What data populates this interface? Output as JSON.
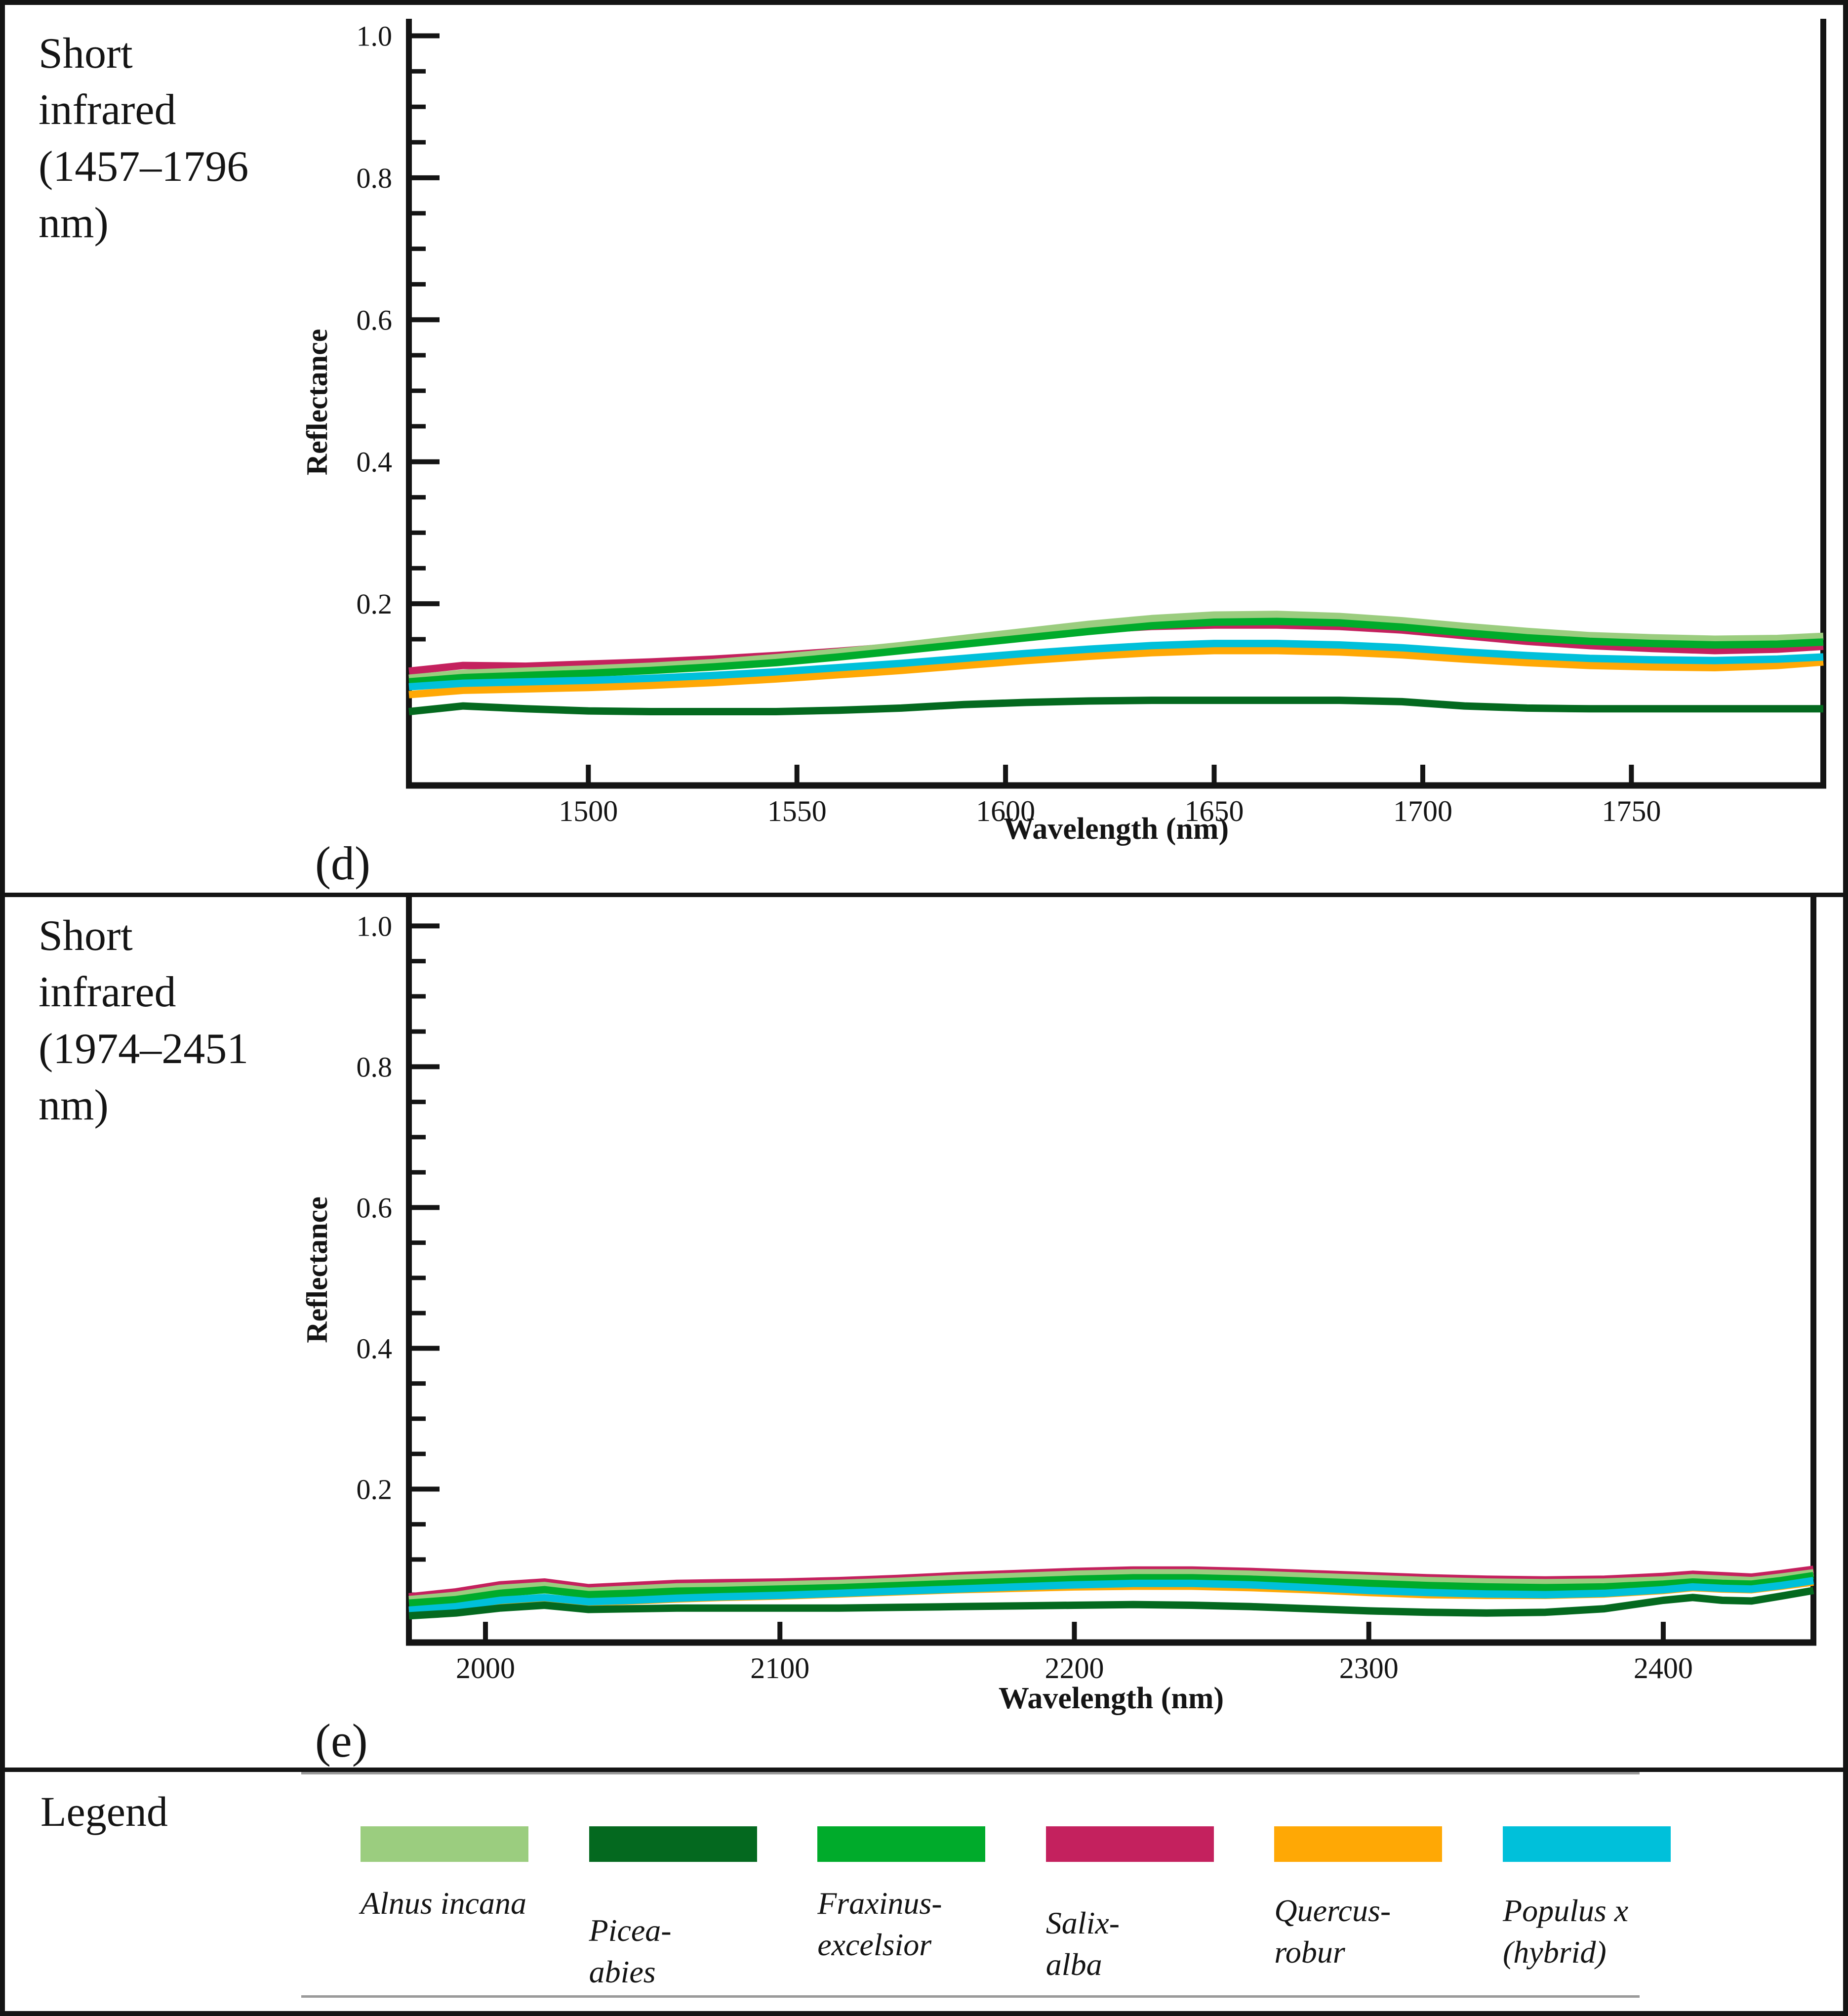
{
  "panels": [
    {
      "header": "Short\ninfrared\n(1457–1796\nnm)",
      "letter": "(d)"
    },
    {
      "header": "Short\ninfrared\n(1974–2451\nnm)",
      "letter": "(e)"
    }
  ],
  "legend": {
    "title": "Legend",
    "items": [
      {
        "name": "Alnus incana",
        "label": "Alnus incana",
        "color": "#9bcd7f"
      },
      {
        "name": "Picea abies",
        "label": "Picea-\nabies",
        "color": "#04691f"
      },
      {
        "name": "Fraxinus excelsior",
        "label": "Fraxinus-\nexcelsior",
        "color": "#00ab2b"
      },
      {
        "name": "Salix alba",
        "label": "Salix-\nalba",
        "color": "#c4215e"
      },
      {
        "name": "Quercus robur",
        "label": "Quercus-\nrobur",
        "color": "#ffa805"
      },
      {
        "name": "Populus x (hybrid)",
        "label": "Populus x\n(hybrid)",
        "color": "#00c0da"
      }
    ]
  },
  "colors": {
    "axis": "#141414",
    "background": "#ffffff",
    "alnus": "#9bcd7f",
    "picea": "#04691f",
    "fraxinus": "#00ab2b",
    "salix": "#c4215e",
    "quercus": "#ffa805",
    "populus": "#00c0da"
  },
  "chart_data": [
    {
      "type": "line",
      "title": "Short infrared (1457–1796 nm)",
      "xlabel": "Wavelength (nm)",
      "ylabel": "Reflectance",
      "xlim": [
        1457,
        1796
      ],
      "ylim": [
        -0.056,
        1.024
      ],
      "x_ticks": [
        1500,
        1550,
        1600,
        1650,
        1700,
        1750
      ],
      "y_ticks_major": [
        "1.0",
        "0.8",
        "0.6",
        "0.4",
        "0.2"
      ],
      "y_minor_step": 0.05,
      "grid": false,
      "legend_position": "separate bottom panel",
      "x": [
        1457,
        1470,
        1485,
        1500,
        1515,
        1530,
        1545,
        1560,
        1575,
        1590,
        1605,
        1620,
        1635,
        1650,
        1665,
        1680,
        1695,
        1710,
        1725,
        1740,
        1755,
        1770,
        1785,
        1796
      ],
      "series": [
        {
          "name": "Salix alba",
          "color": "#c4215e",
          "values": [
            0.105,
            0.113,
            0.112,
            0.115,
            0.118,
            0.122,
            0.127,
            0.133,
            0.14,
            0.148,
            0.156,
            0.163,
            0.168,
            0.17,
            0.17,
            0.168,
            0.163,
            0.155,
            0.147,
            0.141,
            0.137,
            0.134,
            0.136,
            0.14
          ]
        },
        {
          "name": "Alnus incana",
          "color": "#9bcd7f",
          "values": [
            0.095,
            0.102,
            0.105,
            0.108,
            0.112,
            0.117,
            0.124,
            0.132,
            0.141,
            0.151,
            0.161,
            0.171,
            0.179,
            0.184,
            0.185,
            0.182,
            0.176,
            0.168,
            0.161,
            0.155,
            0.152,
            0.15,
            0.151,
            0.154
          ]
        },
        {
          "name": "Fraxinus excelsior",
          "color": "#00ab2b",
          "values": [
            0.09,
            0.096,
            0.099,
            0.102,
            0.106,
            0.111,
            0.117,
            0.125,
            0.134,
            0.143,
            0.152,
            0.161,
            0.169,
            0.174,
            0.175,
            0.173,
            0.167,
            0.159,
            0.152,
            0.147,
            0.144,
            0.142,
            0.143,
            0.146
          ]
        },
        {
          "name": "Quercus robur",
          "color": "#ffa805",
          "values": [
            0.072,
            0.078,
            0.08,
            0.082,
            0.085,
            0.089,
            0.094,
            0.1,
            0.106,
            0.113,
            0.12,
            0.126,
            0.131,
            0.134,
            0.134,
            0.132,
            0.128,
            0.122,
            0.117,
            0.113,
            0.111,
            0.11,
            0.113,
            0.118
          ]
        },
        {
          "name": "Populus x (hybrid)",
          "color": "#00c0da",
          "values": [
            0.083,
            0.088,
            0.09,
            0.092,
            0.095,
            0.099,
            0.104,
            0.11,
            0.116,
            0.123,
            0.13,
            0.136,
            0.141,
            0.144,
            0.144,
            0.142,
            0.138,
            0.132,
            0.127,
            0.123,
            0.121,
            0.12,
            0.122,
            0.125
          ]
        },
        {
          "name": "Picea abies",
          "color": "#04691f",
          "values": [
            0.048,
            0.056,
            0.052,
            0.049,
            0.048,
            0.048,
            0.048,
            0.05,
            0.053,
            0.058,
            0.061,
            0.063,
            0.064,
            0.064,
            0.064,
            0.064,
            0.062,
            0.056,
            0.053,
            0.052,
            0.052,
            0.052,
            0.052,
            0.052
          ]
        }
      ]
    },
    {
      "type": "line",
      "title": "Short infrared (1974–2451 nm)",
      "xlabel": "Wavelength (nm)",
      "ylabel": "Reflectance",
      "xlim": [
        1974,
        2451
      ],
      "ylim": [
        -0.018,
        1.041
      ],
      "x_ticks": [
        2000,
        2100,
        2200,
        2300,
        2400
      ],
      "y_ticks_major": [
        "1.0",
        "0.8",
        "0.6",
        "0.4",
        "0.2"
      ],
      "y_minor_step": 0.05,
      "grid": false,
      "legend_position": "separate bottom panel",
      "x": [
        1974,
        1990,
        2005,
        2020,
        2035,
        2050,
        2065,
        2080,
        2100,
        2120,
        2140,
        2160,
        2180,
        2200,
        2220,
        2240,
        2260,
        2280,
        2300,
        2320,
        2340,
        2360,
        2380,
        2400,
        2410,
        2420,
        2430,
        2440,
        2451
      ],
      "series": [
        {
          "name": "Salix alba",
          "color": "#c4215e",
          "values": [
            0.047,
            0.054,
            0.064,
            0.068,
            0.06,
            0.063,
            0.066,
            0.067,
            0.068,
            0.07,
            0.073,
            0.077,
            0.08,
            0.083,
            0.085,
            0.085,
            0.083,
            0.08,
            0.077,
            0.074,
            0.072,
            0.071,
            0.072,
            0.076,
            0.079,
            0.077,
            0.075,
            0.08,
            0.086
          ]
        },
        {
          "name": "Alnus incana",
          "color": "#9bcd7f",
          "values": [
            0.043,
            0.049,
            0.059,
            0.063,
            0.055,
            0.058,
            0.061,
            0.062,
            0.064,
            0.066,
            0.069,
            0.073,
            0.076,
            0.079,
            0.081,
            0.081,
            0.079,
            0.076,
            0.073,
            0.07,
            0.068,
            0.067,
            0.068,
            0.071,
            0.074,
            0.072,
            0.07,
            0.075,
            0.081
          ]
        },
        {
          "name": "Fraxinus excelsior",
          "color": "#00ab2b",
          "values": [
            0.038,
            0.043,
            0.052,
            0.057,
            0.05,
            0.052,
            0.055,
            0.056,
            0.058,
            0.06,
            0.063,
            0.066,
            0.069,
            0.072,
            0.074,
            0.074,
            0.072,
            0.069,
            0.066,
            0.063,
            0.061,
            0.06,
            0.061,
            0.065,
            0.068,
            0.066,
            0.065,
            0.07,
            0.077
          ]
        },
        {
          "name": "Quercus robur",
          "color": "#ffa805",
          "values": [
            0.027,
            0.032,
            0.041,
            0.045,
            0.039,
            0.041,
            0.044,
            0.046,
            0.048,
            0.051,
            0.054,
            0.057,
            0.059,
            0.061,
            0.062,
            0.062,
            0.06,
            0.057,
            0.053,
            0.05,
            0.049,
            0.049,
            0.051,
            0.056,
            0.06,
            0.058,
            0.057,
            0.062,
            0.068
          ]
        },
        {
          "name": "Populus x (hybrid)",
          "color": "#00c0da",
          "values": [
            0.028,
            0.033,
            0.042,
            0.046,
            0.04,
            0.042,
            0.045,
            0.047,
            0.049,
            0.052,
            0.055,
            0.058,
            0.061,
            0.064,
            0.066,
            0.066,
            0.064,
            0.06,
            0.056,
            0.053,
            0.051,
            0.05,
            0.052,
            0.057,
            0.061,
            0.059,
            0.058,
            0.063,
            0.07
          ]
        },
        {
          "name": "Picea abies",
          "color": "#04691f",
          "values": [
            0.02,
            0.024,
            0.031,
            0.035,
            0.029,
            0.03,
            0.031,
            0.031,
            0.031,
            0.031,
            0.032,
            0.033,
            0.034,
            0.035,
            0.036,
            0.035,
            0.033,
            0.03,
            0.027,
            0.025,
            0.024,
            0.025,
            0.03,
            0.042,
            0.046,
            0.042,
            0.041,
            0.048,
            0.056
          ]
        }
      ]
    }
  ]
}
